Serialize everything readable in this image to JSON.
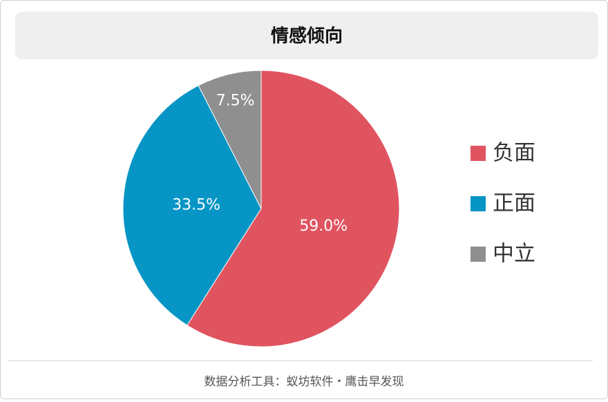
{
  "chart_data": {
    "type": "pie",
    "title": "情感倾向",
    "categories": [
      "负面",
      "正面",
      "中立"
    ],
    "values": [
      59.0,
      33.5,
      7.5
    ],
    "value_labels": [
      "59.0%",
      "33.5%",
      "7.5%"
    ],
    "colors": [
      "#e05460",
      "#0795c5",
      "#8f8f8f"
    ],
    "legend": "right"
  },
  "footer": "数据分析工具：蚁坊软件・鹰击早发现"
}
